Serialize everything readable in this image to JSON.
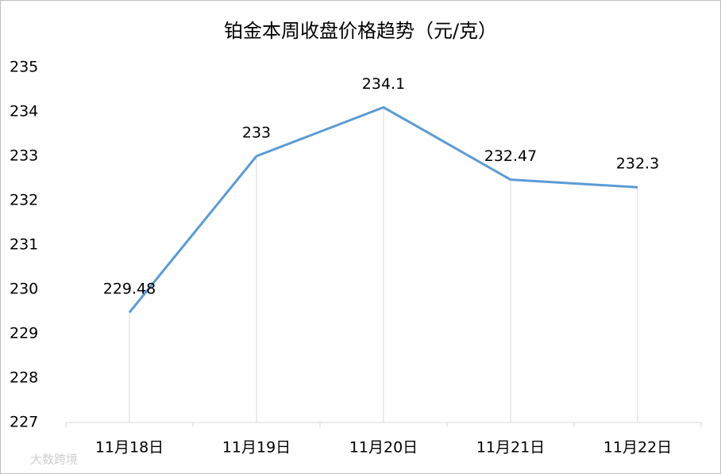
{
  "chart_data": {
    "type": "line",
    "title": "铂金本周收盘价格趋势（元/克）",
    "categories": [
      "11月18日",
      "11月19日",
      "11月20日",
      "11月21日",
      "11月22日"
    ],
    "series": [
      {
        "name": "铂金",
        "color": "#5b9bd5",
        "values": [
          229.48,
          233,
          234.1,
          232.47,
          232.3
        ]
      }
    ],
    "ylim": [
      227,
      235
    ],
    "yticks": [
      227,
      228,
      229,
      230,
      231,
      232,
      233,
      234,
      235
    ],
    "drop_lines": true,
    "watermark": "大数跨境"
  }
}
